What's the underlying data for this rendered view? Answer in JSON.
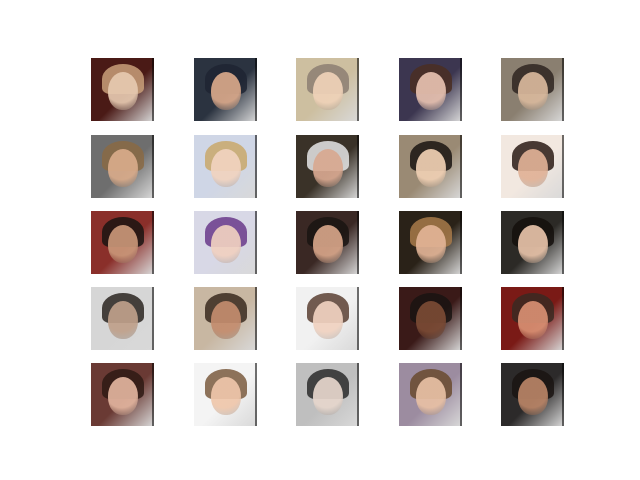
{
  "grid": {
    "rows": 5,
    "cols": 5
  },
  "tiles": [
    {
      "bg": "#4a1a16",
      "skin": "#e6c9b0",
      "hair": "#c9a07a"
    },
    {
      "bg": "#2b3340",
      "skin": "#d9a88a",
      "hair": "#1e2433"
    },
    {
      "bg": "#cdbfa0",
      "skin": "#efd2b8",
      "hair": "#8c7e72"
    },
    {
      "bg": "#3c3650",
      "skin": "#e7c1b0",
      "hair": "#4a2e22"
    },
    {
      "bg": "#8a7f70",
      "skin": "#d8b89c",
      "hair": "#2e2420"
    },
    {
      "bg": "#6e6e6e",
      "skin": "#d9ab8a",
      "hair": "#8a6a44"
    },
    {
      "bg": "#cfd6e6",
      "skin": "#f1d3bf",
      "hair": "#c9a86a"
    },
    {
      "bg": "#3a3228",
      "skin": "#d8a890",
      "hair": "#e6e6e6"
    },
    {
      "bg": "#9a8a74",
      "skin": "#efcfb3",
      "hair": "#1a1412"
    },
    {
      "bg": "#f2e8e0",
      "skin": "#e0b196",
      "hair": "#2a1a14"
    },
    {
      "bg": "#8a2f2a",
      "skin": "#c99678",
      "hair": "#1a1412"
    },
    {
      "bg": "#d8d8e6",
      "skin": "#f0d0c0",
      "hair": "#6a3a8a"
    },
    {
      "bg": "#3a2824",
      "skin": "#d6a488",
      "hair": "#1a1412"
    },
    {
      "bg": "#2a2218",
      "skin": "#e2b496",
      "hair": "#a87a4a"
    },
    {
      "bg": "#2c2a26",
      "skin": "#e7c2a8",
      "hair": "#140f0c"
    },
    {
      "bg": "#d6d6d6",
      "skin": "#bfa08a",
      "hair": "#2a2420"
    },
    {
      "bg": "#c8b7a2",
      "skin": "#c38c6e",
      "hair": "#3a2a1e"
    },
    {
      "bg": "#f1f1f1",
      "skin": "#f0d2c0",
      "hair": "#5a4032"
    },
    {
      "bg": "#3a1a18",
      "skin": "#7a4a34",
      "hair": "#1a1412"
    },
    {
      "bg": "#7a1a16",
      "skin": "#d88f72",
      "hair": "#3a2a22"
    },
    {
      "bg": "#6a3a34",
      "skin": "#e2b49e",
      "hair": "#2e1a14"
    },
    {
      "bg": "#f4f4f4",
      "skin": "#efc6aa",
      "hair": "#7a5a3e"
    },
    {
      "bg": "#bfbfbf",
      "skin": "#e6d6cc",
      "hair": "#2a2a2a"
    },
    {
      "bg": "#9c8ca0",
      "skin": "#e8c0a4",
      "hair": "#6a4a2e"
    },
    {
      "bg": "#2c2a2a",
      "skin": "#b98466",
      "hair": "#1a1412"
    }
  ]
}
